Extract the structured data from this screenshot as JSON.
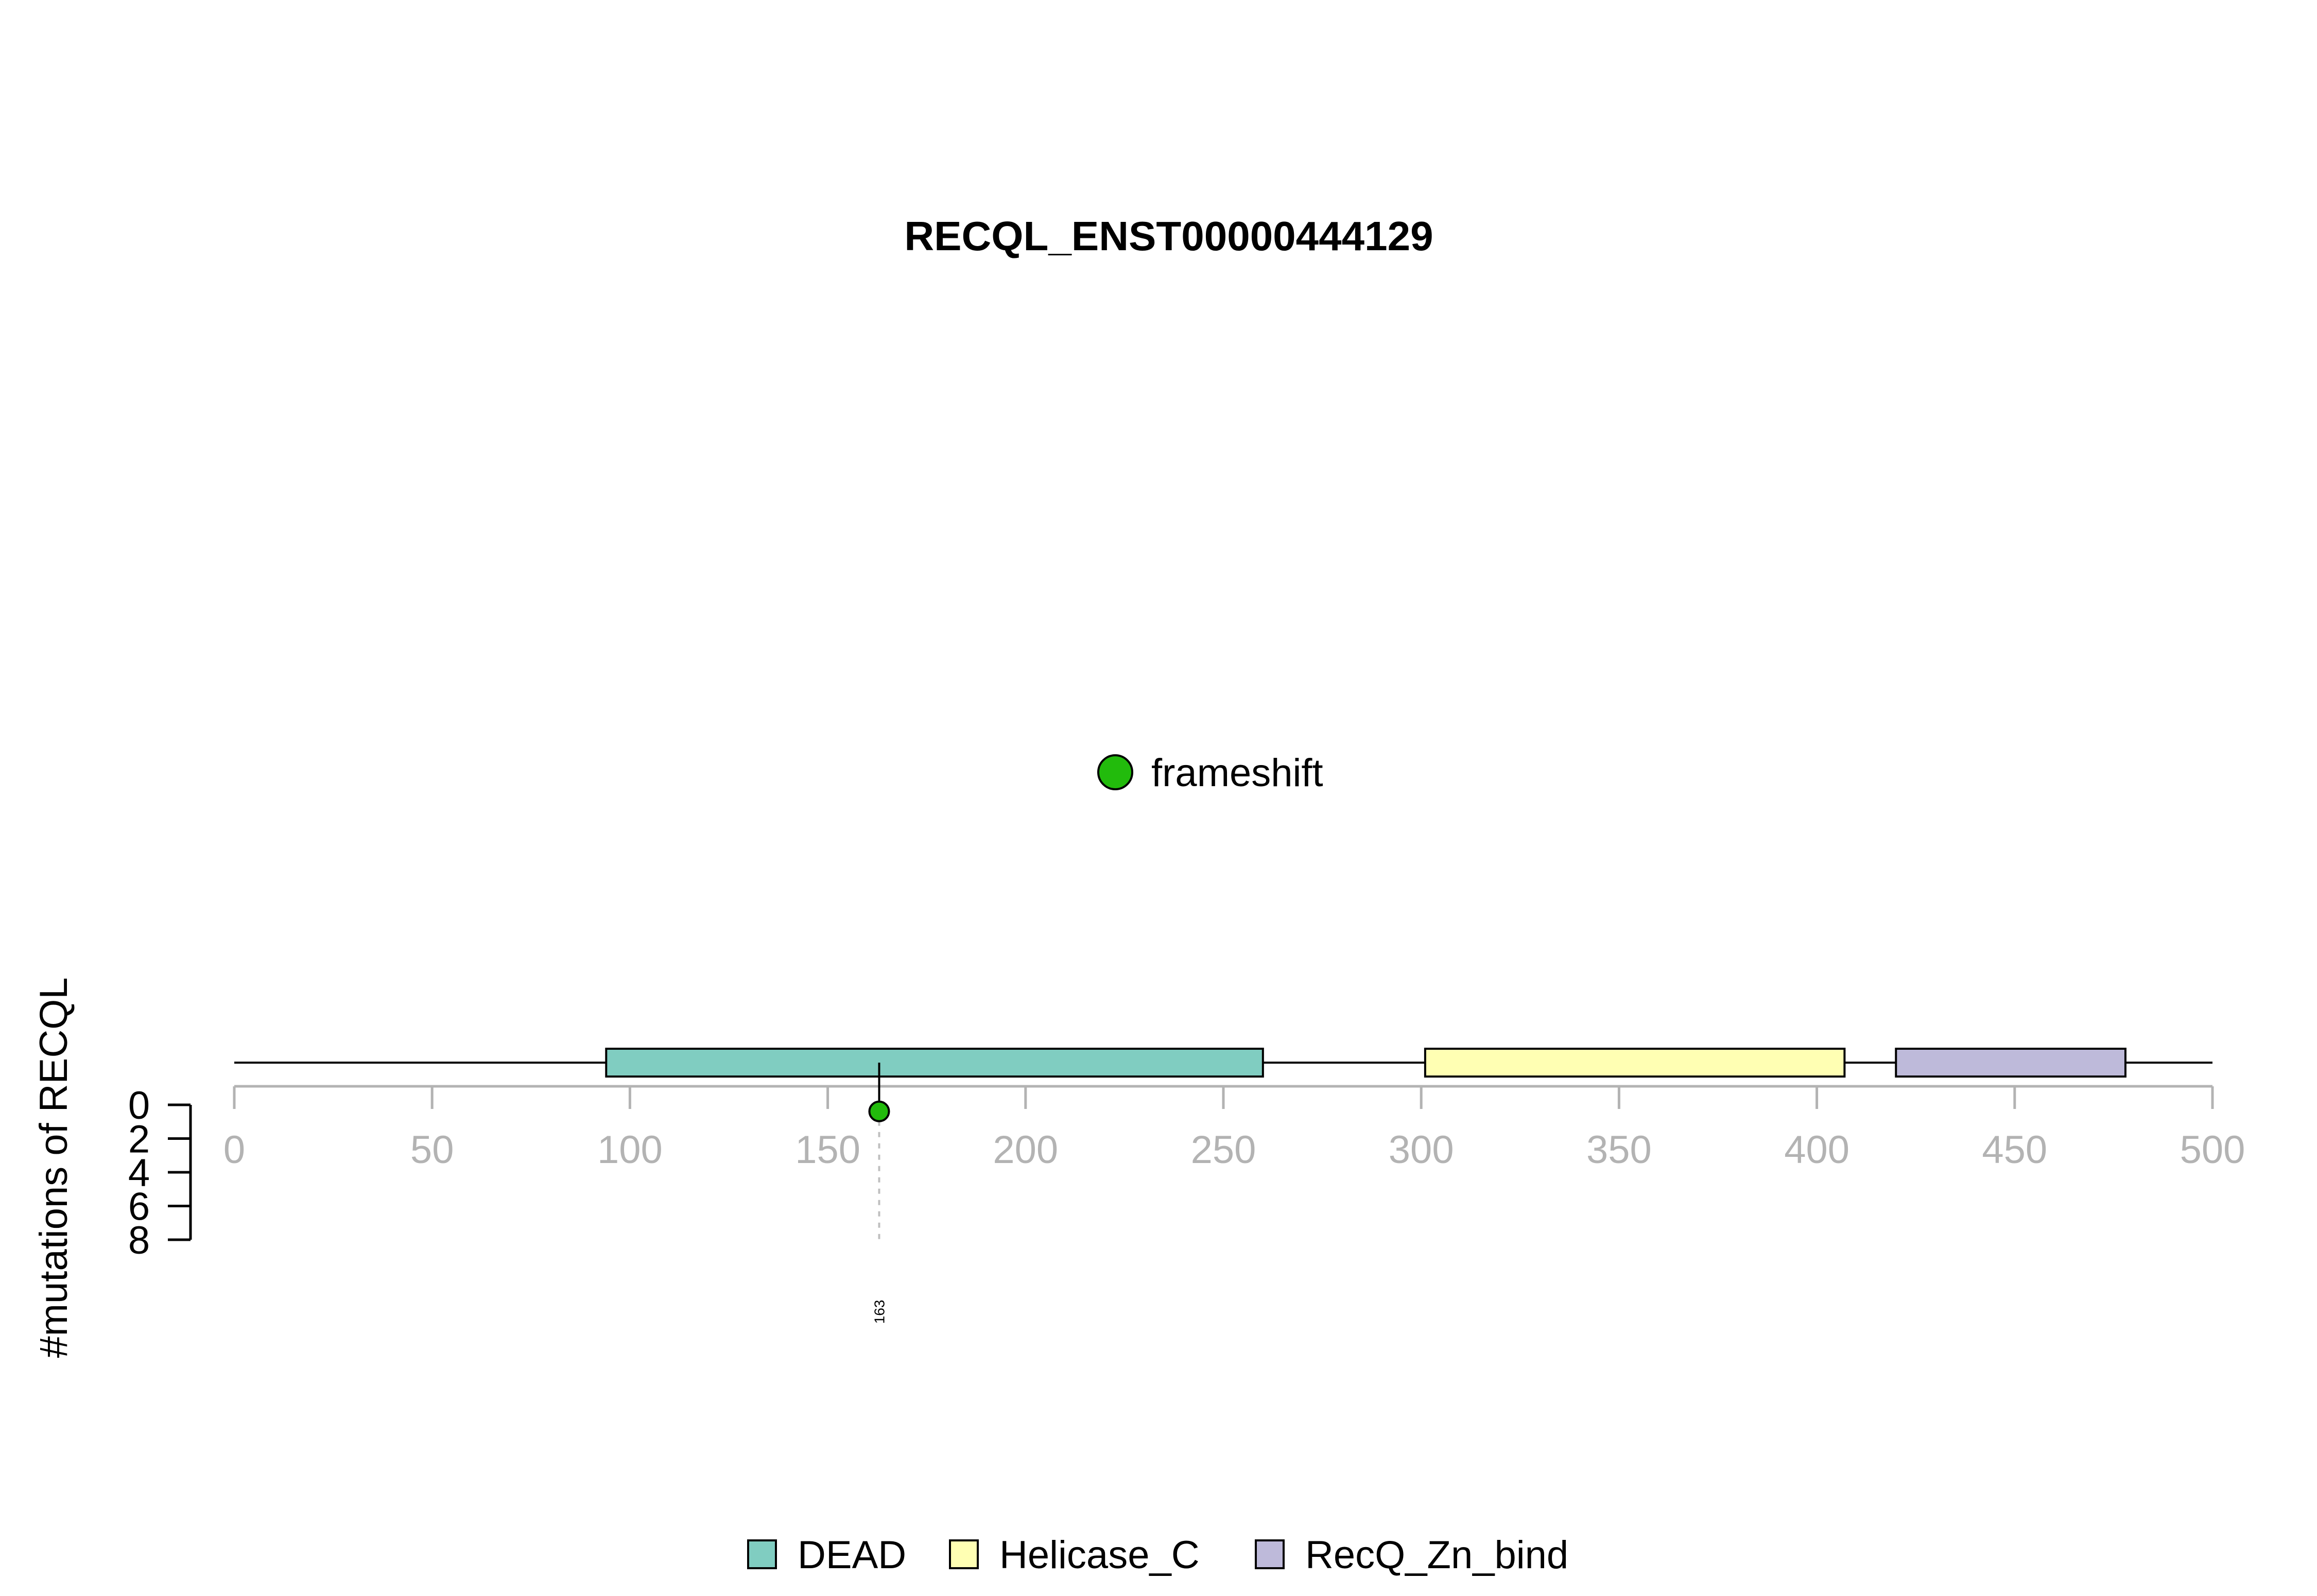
{
  "chart_data": {
    "type": "lollipop",
    "title": "RECQL_ENST00000444129",
    "ylabel": "#mutations of RECQL",
    "protein_length": 500,
    "xlim": [
      0,
      500
    ],
    "x_ticks": [
      0,
      50,
      100,
      150,
      200,
      250,
      300,
      350,
      400,
      450,
      500
    ],
    "ylim": [
      0,
      8
    ],
    "y_ticks": [
      0,
      2,
      4,
      6,
      8
    ],
    "domains": [
      {
        "name": "DEAD",
        "start": 94,
        "end": 260,
        "color": "#80CDC1"
      },
      {
        "name": "Helicase_C",
        "start": 301,
        "end": 407,
        "color": "#FFFFB3"
      },
      {
        "name": "RecQ_Zn_bind",
        "start": 420,
        "end": 478,
        "color": "#BEBADA"
      }
    ],
    "mutations": [
      {
        "position": 163,
        "count": 1,
        "type": "frameshift",
        "label": "163"
      }
    ],
    "mutation_legend": [
      {
        "type": "frameshift",
        "color": "#22BB0C"
      }
    ],
    "domain_legend_placement": "bottom",
    "mutation_legend_placement": "top-center"
  },
  "colors": {
    "axis": "#B3B3B3",
    "backbone": "#000000",
    "frameshift": "#22BB0C",
    "dotted_guide": "#BFBFBF"
  }
}
